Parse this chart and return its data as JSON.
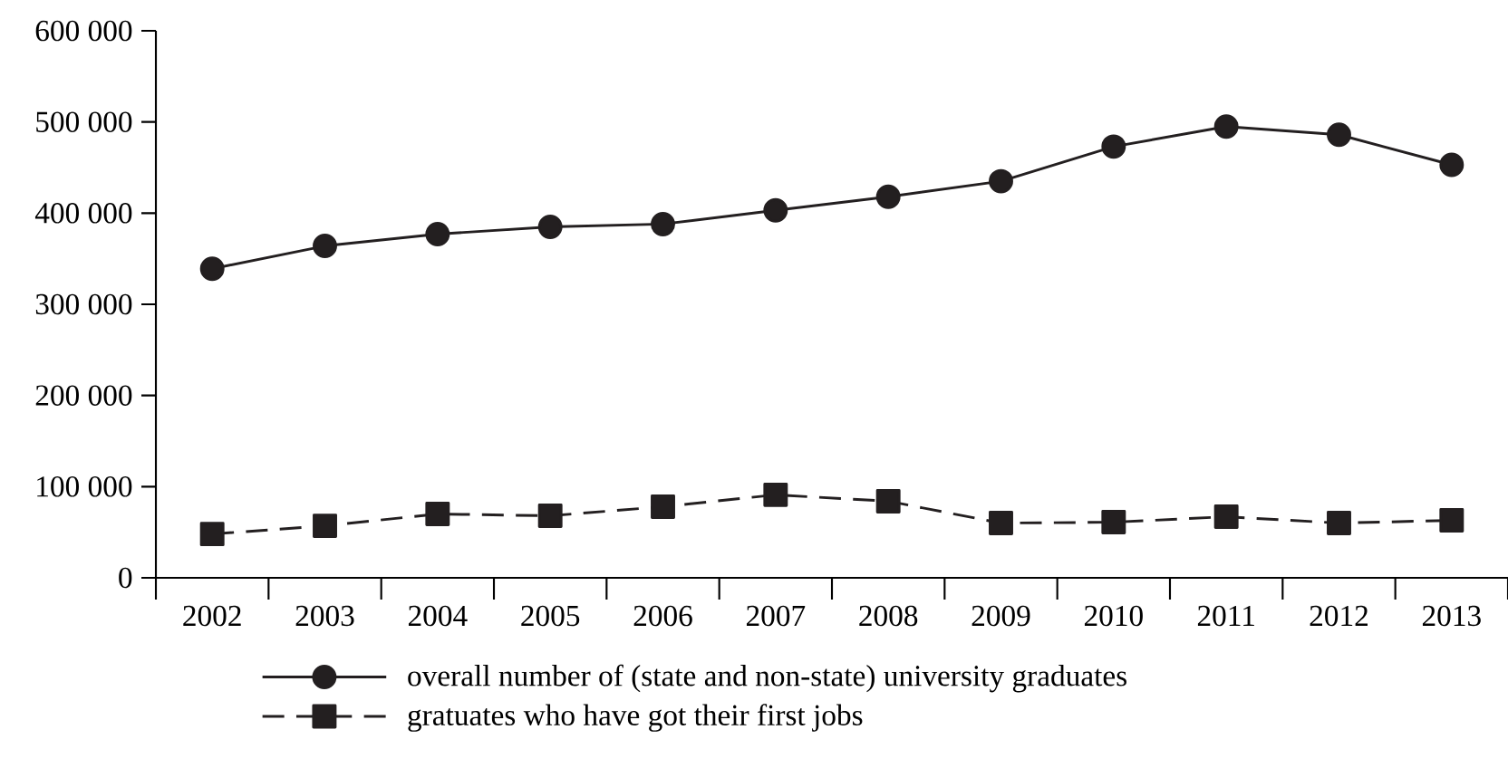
{
  "chart_data": {
    "type": "line",
    "categories": [
      "2002",
      "2003",
      "2004",
      "2005",
      "2006",
      "2007",
      "2008",
      "2009",
      "2010",
      "2011",
      "2012",
      "2013"
    ],
    "series": [
      {
        "name": "overall number of (state and non-state) university graduates",
        "color": "#231f20",
        "marker": "circle",
        "line_style": "solid",
        "values": [
          339000,
          364000,
          377000,
          385000,
          388000,
          403000,
          418000,
          435000,
          473000,
          495000,
          486000,
          453000
        ]
      },
      {
        "name": "gratuates who have got their first jobs",
        "color": "#231f20",
        "marker": "square",
        "line_style": "dashed",
        "values": [
          48000,
          57000,
          70000,
          68000,
          78000,
          91000,
          84000,
          60000,
          61000,
          67000,
          60000,
          63000
        ]
      }
    ],
    "ylim": [
      0,
      600000
    ],
    "yticks": [
      0,
      {
        "value": 100000,
        "label": "100 000"
      },
      {
        "value": 200000,
        "label": "200 000"
      },
      {
        "value": 300000,
        "label": "300 000"
      },
      {
        "value": 400000,
        "label": "400 000"
      },
      {
        "value": 500000,
        "label": "500 000"
      },
      {
        "value": 600000,
        "label": "600 000"
      }
    ],
    "grid": false,
    "legend": "bottom"
  }
}
